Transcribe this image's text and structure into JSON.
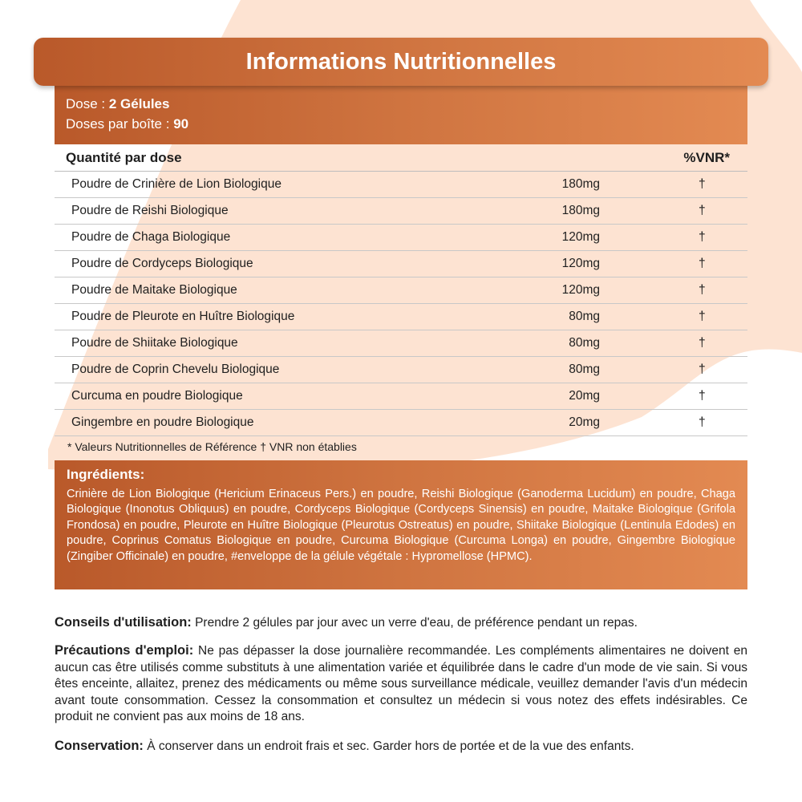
{
  "title": "Informations Nutritionnelles",
  "dose": {
    "label": "Dose : ",
    "value": "2 Gélules",
    "per_box_label": "Doses par boîte : ",
    "per_box_value": "90"
  },
  "table": {
    "header_left": "Quantité par dose",
    "header_right": "%VNR*",
    "rows": [
      {
        "name": "Poudre de Crinière de Lion Biologique",
        "qty": "180mg",
        "vnr": "†"
      },
      {
        "name": "Poudre de Reishi Biologique",
        "qty": "180mg",
        "vnr": "†"
      },
      {
        "name": "Poudre de Chaga Biologique",
        "qty": "120mg",
        "vnr": "†"
      },
      {
        "name": "Poudre de Cordyceps Biologique",
        "qty": "120mg",
        "vnr": "†"
      },
      {
        "name": "Poudre de Maitake Biologique",
        "qty": "120mg",
        "vnr": "†"
      },
      {
        "name": "Poudre de Pleurote en Huître Biologique",
        "qty": "80mg",
        "vnr": "†"
      },
      {
        "name": "Poudre de Shiitake Biologique",
        "qty": "80mg",
        "vnr": "†"
      },
      {
        "name": "Poudre de Coprin Chevelu Biologique",
        "qty": "80mg",
        "vnr": "†"
      },
      {
        "name": "Curcuma en poudre Biologique",
        "qty": "20mg",
        "vnr": "†"
      },
      {
        "name": "Gingembre en poudre Biologique",
        "qty": "20mg",
        "vnr": "†"
      }
    ]
  },
  "footnote": "* Valeurs Nutritionnelles de Référence † VNR non établies",
  "ingredients": {
    "title": "Ingrédients:",
    "text": "Crinière de Lion Biologique (Hericium Erinaceus Pers.) en poudre, Reishi Biologique (Ganoderma Lucidum) en poudre, Chaga Biologique (Inonotus Obliquus) en poudre, Cordyceps Biologique (Cordyceps Sinensis) en poudre, Maitake Biologique (Grifola Frondosa) en poudre, Pleurote en Huître Biologique (Pleurotus Ostreatus) en poudre, Shiitake Biologique (Lentinula Edodes) en poudre, Coprinus Comatus Biologique en poudre, Curcuma Biologique (Curcuma Longa) en poudre, Gingembre Biologique (Zingiber Officinale) en poudre, #enveloppe de la gélule végétale : Hypromellose (HPMC)."
  },
  "usage": {
    "label": "Conseils d'utilisation:",
    "text": " Prendre 2 gélules par jour avec un verre d'eau, de préférence pendant un repas."
  },
  "precautions": {
    "label": "Précautions d'emploi:",
    "text": " Ne pas dépasser la dose journalière recommandée. Les compléments alimentaires ne doivent en aucun cas être utilisés comme substituts à une alimentation variée et équilibrée dans le cadre d'un mode de vie sain. Si vous êtes enceinte, allaitez, prenez des médicaments ou même sous surveillance médicale, veuillez demander l'avis d'un médecin avant toute consommation. Cessez la consommation et consultez un médecin si vous notez des effets indésirables. Ce produit ne convient pas aux moins de 18 ans."
  },
  "storage": {
    "label": "Conservation:",
    "text": " À conserver dans un endroit frais et sec. Garder hors de portée et de la vue des enfants."
  },
  "colors": {
    "accent_dark": "#b9592a",
    "accent_light": "#e38a52",
    "peach_bg": "#fde3d2"
  }
}
